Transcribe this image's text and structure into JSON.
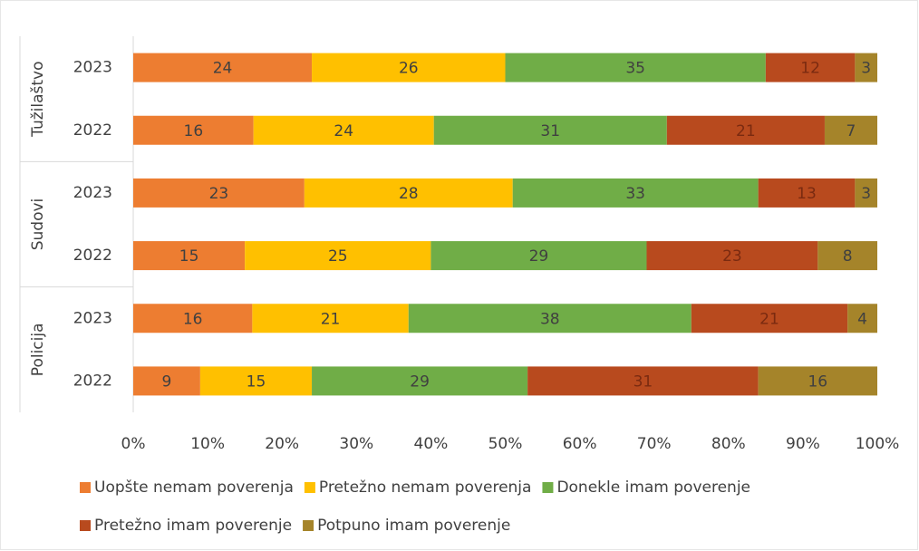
{
  "chart_data": {
    "type": "stacked-bar-100",
    "groups": [
      "Tužilaštvo",
      "Sudovi",
      "Policija"
    ],
    "categories": [
      "2023",
      "2022",
      "2023",
      "2022",
      "2023",
      "2022"
    ],
    "series": [
      {
        "name": "Uopšte nemam poverenja",
        "color": "#ed7d31",
        "values": [
          24,
          16,
          23,
          15,
          16,
          9
        ]
      },
      {
        "name": "Pretežno nemam poverenja",
        "color": "#ffc000",
        "values": [
          26,
          24,
          28,
          25,
          21,
          15
        ]
      },
      {
        "name": "Donekle imam poverenje",
        "color": "#70ad47",
        "values": [
          35,
          31,
          33,
          29,
          38,
          29
        ]
      },
      {
        "name": "Pretežno imam poverenje",
        "color": "#b84a1e",
        "values": [
          12,
          21,
          13,
          23,
          21,
          31
        ]
      },
      {
        "name": "Potpuno imam poverenje",
        "color": "#a5842a",
        "values": [
          3,
          7,
          3,
          8,
          4,
          16
        ]
      }
    ],
    "xlim": [
      0,
      100
    ],
    "xticks": [
      {
        "value": 0,
        "label": "0%"
      },
      {
        "value": 10,
        "label": "10%"
      },
      {
        "value": 20,
        "label": "20%"
      },
      {
        "value": 30,
        "label": "30%"
      },
      {
        "value": 40,
        "label": "40%"
      },
      {
        "value": 50,
        "label": "50%"
      },
      {
        "value": 60,
        "label": "60%"
      },
      {
        "value": 70,
        "label": "70%"
      },
      {
        "value": 80,
        "label": "80%"
      },
      {
        "value": 90,
        "label": "90%"
      },
      {
        "value": 100,
        "label": "100%"
      }
    ],
    "legend": "bottom"
  }
}
